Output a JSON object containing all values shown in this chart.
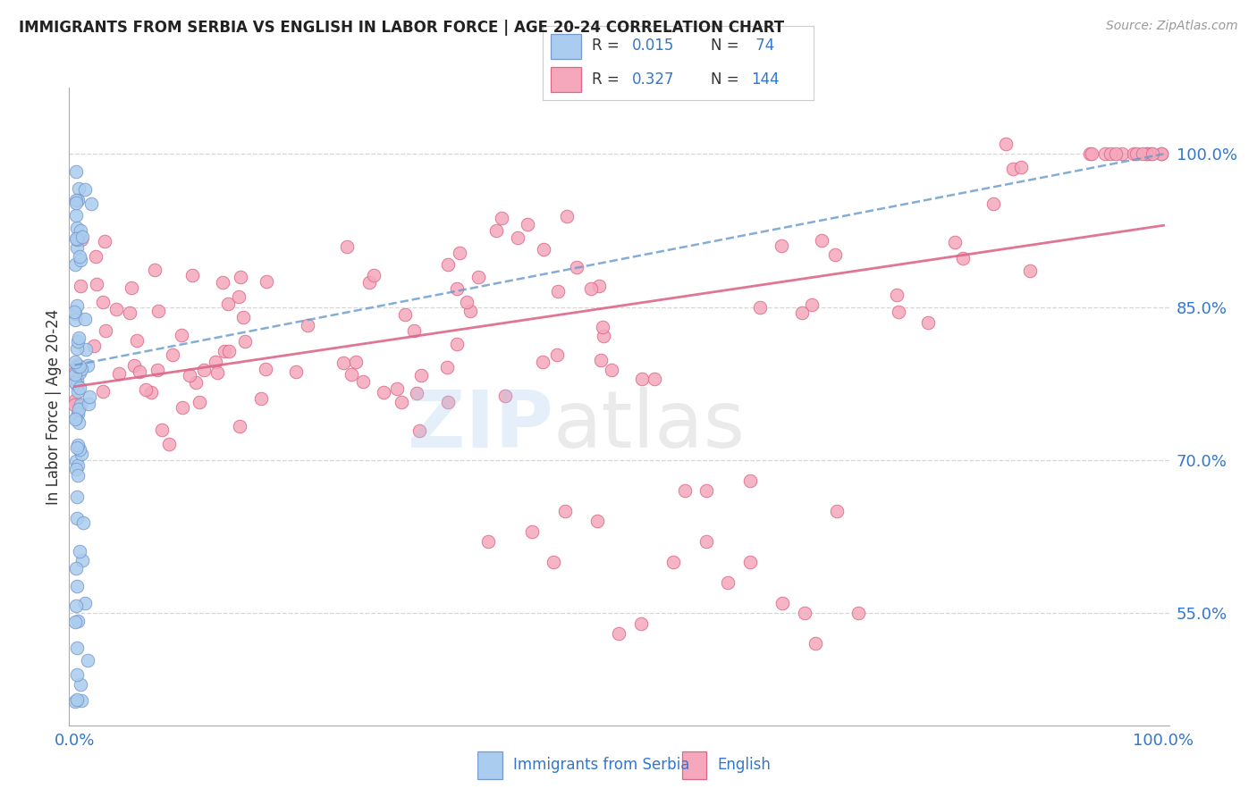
{
  "title": "IMMIGRANTS FROM SERBIA VS ENGLISH IN LABOR FORCE | AGE 20-24 CORRELATION CHART",
  "source": "Source: ZipAtlas.com",
  "ylabel": "In Labor Force | Age 20-24",
  "serbia_color": "#aaccee",
  "serbia_edge": "#7799cc",
  "english_color": "#f5a8bb",
  "english_edge": "#dd6688",
  "trend_blue_color": "#6699cc",
  "trend_pink_color": "#dd6688",
  "grid_color": "#cccccc",
  "background": "#ffffff",
  "r_serbia": 0.015,
  "n_serbia": 74,
  "r_english": 0.327,
  "n_english": 144,
  "ytick_vals": [
    0.55,
    0.7,
    0.85,
    1.0
  ],
  "ytick_labels": [
    "55.0%",
    "70.0%",
    "85.0%",
    "100.0%"
  ],
  "axis_color": "#3377cc",
  "legend_text_color": "#333333",
  "legend_val_color": "#3377cc"
}
